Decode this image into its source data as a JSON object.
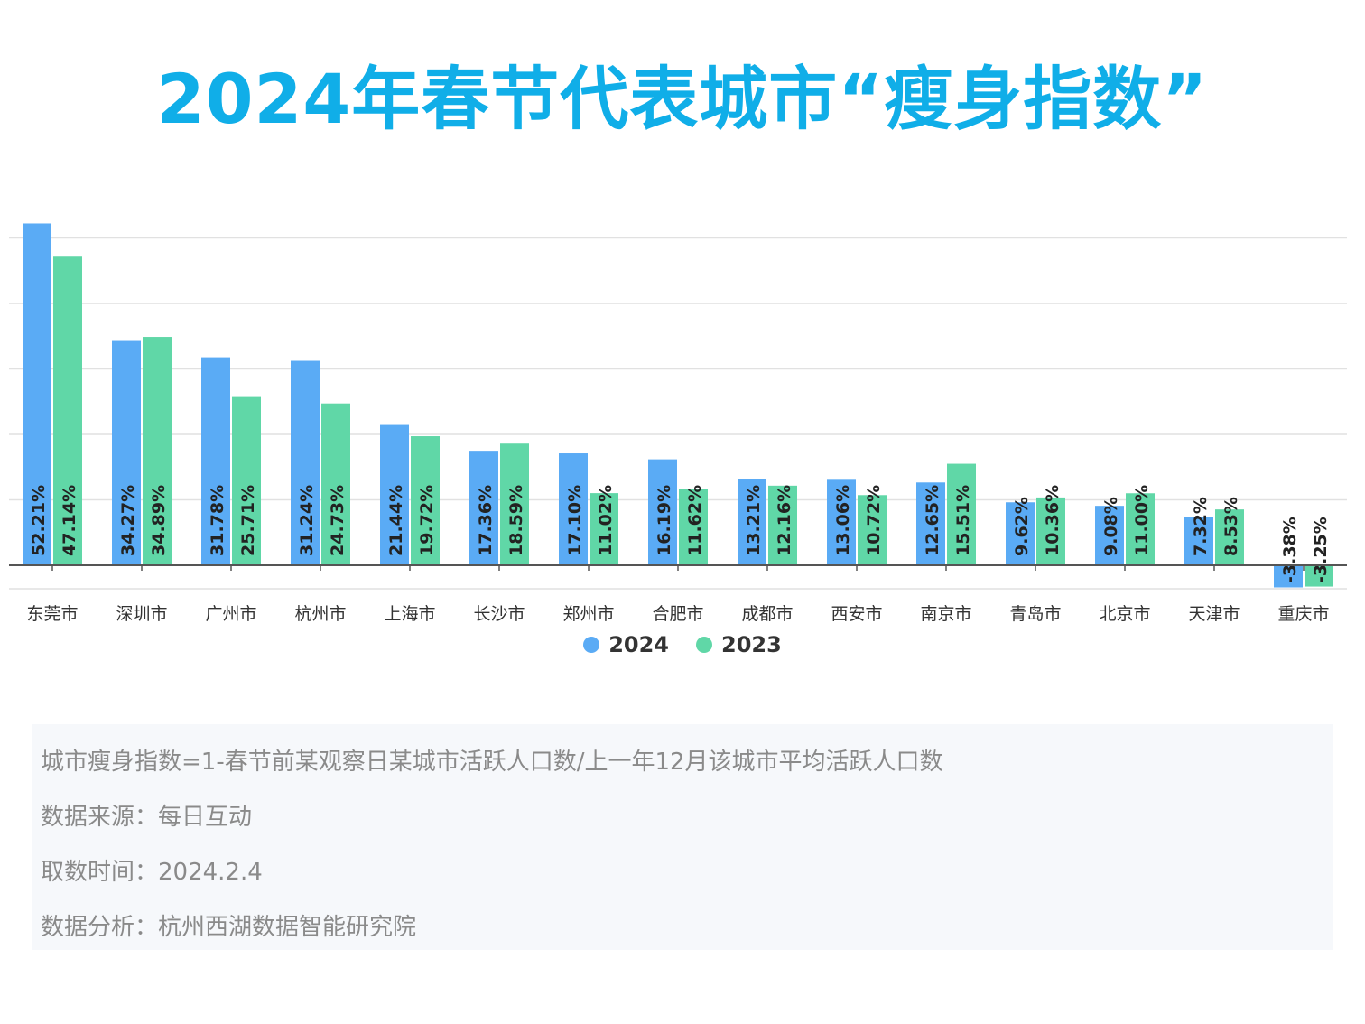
{
  "title": "2024年春节代表城市“瘦身指数”",
  "colors": {
    "title": "#10aee8",
    "series_2024": "#5aabf5",
    "series_2023": "#60d7a7",
    "grid": "#e1e1e1",
    "axis": "#555555"
  },
  "chart_data": {
    "type": "bar",
    "categories": [
      "东莞市",
      "深圳市",
      "广州市",
      "杭州市",
      "上海市",
      "长沙市",
      "郑州市",
      "合肥市",
      "成都市",
      "西安市",
      "南京市",
      "青岛市",
      "北京市",
      "天津市",
      "重庆市"
    ],
    "series": [
      {
        "name": "2024",
        "values": [
          52.21,
          34.27,
          31.78,
          31.24,
          21.44,
          17.36,
          17.1,
          16.19,
          13.21,
          13.06,
          12.65,
          9.62,
          9.08,
          7.32,
          -3.38
        ],
        "labels": [
          "52.21%",
          "34.27%",
          "31.78%",
          "31.24%",
          "21.44%",
          "17.36%",
          "17.10%",
          "16.19%",
          "13.21%",
          "13.06%",
          "12.65%",
          "9.62%",
          "9.08%",
          "7.32%",
          "-3.38%"
        ]
      },
      {
        "name": "2023",
        "values": [
          47.14,
          34.89,
          25.71,
          24.73,
          19.72,
          18.59,
          11.02,
          11.62,
          12.16,
          10.72,
          15.51,
          10.36,
          11.0,
          8.53,
          -3.25
        ],
        "labels": [
          "47.14%",
          "34.89%",
          "25.71%",
          "24.73%",
          "19.72%",
          "18.59%",
          "11.02%",
          "11.62%",
          "12.16%",
          "10.72%",
          "15.51%",
          "10.36%",
          "11.00%",
          "8.53%",
          "-3.25%"
        ]
      }
    ],
    "ylim": [
      -4,
      52
    ],
    "grid": true,
    "legend": "bottom-center"
  },
  "notes": [
    "城市瘦身指数=1-春节前某观察日某城市活跃人口数/上一年12月该城市平均活跃人口数",
    "数据来源：每日互动",
    "取数时间：2024.2.4",
    "数据分析：杭州西湖数据智能研究院"
  ]
}
